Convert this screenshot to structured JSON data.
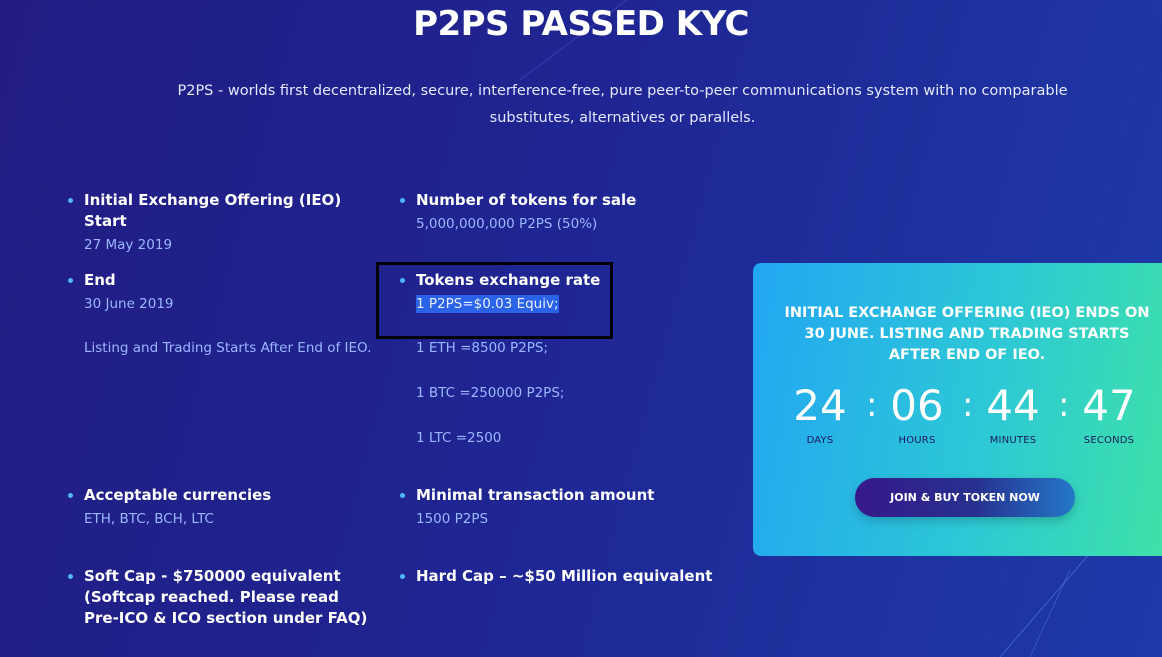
{
  "header": {
    "title": "P2PS PASSED KYC",
    "subtitle": "P2PS - worlds first decentralized, secure, interference-free, pure peer-to-peer communications system with no comparable substitutes, alternatives or parallels."
  },
  "details": {
    "ieo_start": {
      "heading": "Initial Exchange Offering (IEO) Start",
      "value": "27 May 2019"
    },
    "end": {
      "heading": "End",
      "value": "30 June 2019",
      "note": "Listing and Trading Starts After End of IEO."
    },
    "tokens_for_sale": {
      "heading": "Number of tokens for sale",
      "value": "5,000,000,000 P2PS (50%)"
    },
    "exchange_rate": {
      "heading": "Tokens exchange rate",
      "selected": "1 P2PS=$0.03 Equiv;",
      "rates": [
        "1 ETH =8500 P2PS;",
        "1 BTC =250000 P2PS;",
        "1 LTC =2500"
      ]
    },
    "currencies": {
      "heading": "Acceptable currencies",
      "value": "ETH, BTC, BCH, LTC"
    },
    "min_amount": {
      "heading": "Minimal transaction amount",
      "value": "1500 P2PS"
    },
    "soft_cap": {
      "heading": "Soft Cap - $750000 equivalent (Softcap reached. Please read Pre-ICO & ICO section under FAQ)"
    },
    "hard_cap": {
      "heading": "Hard Cap – ~$50 Million equivalent"
    }
  },
  "countdown": {
    "title": "INITIAL EXCHANGE OFFERING (IEO) ENDS ON 30 JUNE. LISTING AND TRADING STARTS AFTER END OF IEO.",
    "units": [
      {
        "value": "24",
        "label": "DAYS"
      },
      {
        "value": "06",
        "label": "HOURS"
      },
      {
        "value": "44",
        "label": "MINUTES"
      },
      {
        "value": "47",
        "label": "SECONDS"
      }
    ],
    "separator": ":",
    "button_label": "JOIN & BUY TOKEN NOW"
  },
  "colors": {
    "accent": "#4fb6ff",
    "highlight": "#2a63e8",
    "value_text": "#9ab7ff"
  }
}
